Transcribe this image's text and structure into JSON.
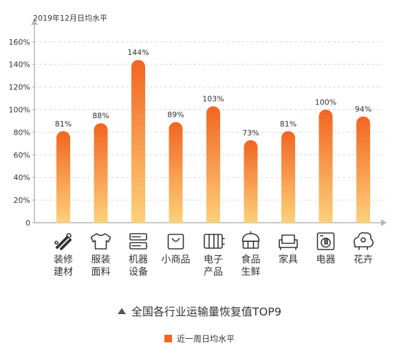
{
  "chart_data": {
    "type": "bar",
    "title": "全国各行业运输量恢复值TOP9",
    "ylabel": "2019年12月日均水平",
    "categories": [
      "装修\n建材",
      "服装\n面料",
      "机器\n设备",
      "小商品",
      "电子\n产品",
      "食品\n生鲜",
      "家具",
      "电器",
      "花卉"
    ],
    "category_icons": [
      "tools-icon",
      "tshirt-icon",
      "server-rack-icon",
      "shopping-bag-icon",
      "circuit-board-icon",
      "cake-icon",
      "sofa-icon",
      "washing-machine-icon",
      "flower-icon"
    ],
    "series": [
      {
        "name": "近一周日均水平",
        "values": [
          81,
          88,
          144,
          89,
          103,
          73,
          81,
          100,
          94
        ]
      }
    ],
    "value_labels": [
      "81%",
      "88%",
      "144%",
      "89%",
      "103%",
      "73%",
      "81%",
      "100%",
      "94%"
    ],
    "yticks": [
      "0",
      "20%",
      "40%",
      "60%",
      "80%",
      "100%",
      "120%",
      "140%",
      "160%"
    ],
    "ylim": [
      0,
      160
    ],
    "grid": true,
    "legend_position": "bottom",
    "colors": {
      "bar_top": "#f26522",
      "bar_bottom": "#fdd17a",
      "axis": "#b5b5b5",
      "grid": "#d9d9d9",
      "icon": "#333333"
    }
  }
}
